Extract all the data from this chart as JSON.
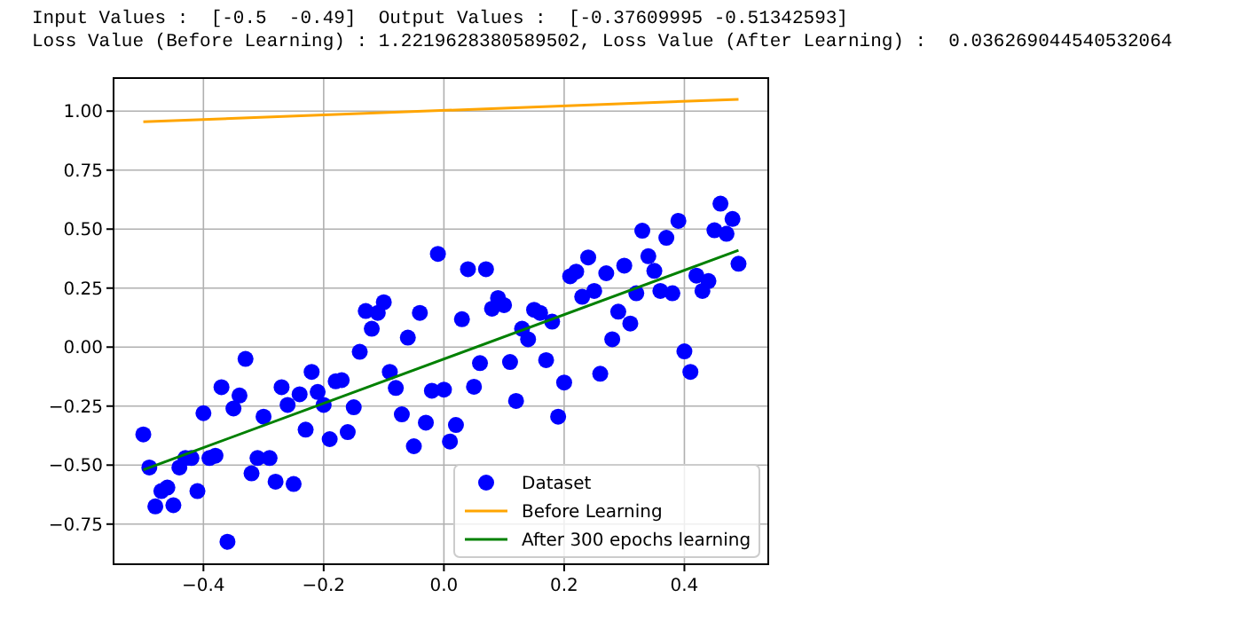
{
  "chart_data": {
    "type": "scatter",
    "title": "Input Values :  [-0.5  -0.49]  Output Values :  [-0.37609995 -0.51342593]",
    "subtitle": "Loss Value (Before Learning) : 1.2219628380589502, Loss Value (After Learning) :  0.036269044540532064",
    "xlim": [
      -0.5495,
      0.5395
    ],
    "ylim": [
      -0.92,
      1.14
    ],
    "xticks": [
      {
        "value": -0.4,
        "label": "−0.4"
      },
      {
        "value": -0.2,
        "label": "−0.2"
      },
      {
        "value": 0,
        "label": "0.0"
      },
      {
        "value": 0.2,
        "label": "0.2"
      },
      {
        "value": 0.4,
        "label": "0.4"
      }
    ],
    "yticks": [
      {
        "value": -0.75,
        "label": "−0.75"
      },
      {
        "value": -0.5,
        "label": "−0.50"
      },
      {
        "value": -0.25,
        "label": "−0.25"
      },
      {
        "value": 0,
        "label": "0.00"
      },
      {
        "value": 0.25,
        "label": "0.25"
      },
      {
        "value": 0.5,
        "label": "0.50"
      },
      {
        "value": 0.75,
        "label": "0.75"
      },
      {
        "value": 1,
        "label": "1.00"
      }
    ],
    "grid": true,
    "legend": "bottom right",
    "series": [
      {
        "name": "Dataset",
        "marker": "circle",
        "color": "#0000ff",
        "x": [
          -0.5,
          -0.49,
          -0.48,
          -0.47,
          -0.46,
          -0.45,
          -0.44,
          -0.43,
          -0.42,
          -0.41,
          -0.4,
          -0.39,
          -0.38,
          -0.37,
          -0.36,
          -0.35,
          -0.34,
          -0.33,
          -0.32,
          -0.31,
          -0.3,
          -0.29,
          -0.28,
          -0.27,
          -0.26,
          -0.25,
          -0.24,
          -0.23,
          -0.22,
          -0.21,
          -0.2,
          -0.19,
          -0.18,
          -0.17,
          -0.16,
          -0.15,
          -0.14,
          -0.13,
          -0.12,
          -0.11,
          -0.1,
          -0.09,
          -0.08,
          -0.07,
          -0.06,
          -0.05,
          -0.04,
          -0.03,
          -0.02,
          -0.01,
          0.0,
          0.01,
          0.02,
          0.03,
          0.04,
          0.05,
          0.06,
          0.07,
          0.08,
          0.09,
          0.1,
          0.11,
          0.12,
          0.13,
          0.14,
          0.15,
          0.16,
          0.17,
          0.18,
          0.19,
          0.2,
          0.21,
          0.22,
          0.23,
          0.24,
          0.25,
          0.26,
          0.27,
          0.28,
          0.29,
          0.3,
          0.31,
          0.32,
          0.33,
          0.34,
          0.35,
          0.36,
          0.37,
          0.38,
          0.39,
          0.4,
          0.41,
          0.42,
          0.43,
          0.44,
          0.45,
          0.46,
          0.47,
          0.48,
          0.49
        ],
        "values": [
          -0.37,
          -0.51,
          -0.675,
          -0.61,
          -0.595,
          -0.67,
          -0.51,
          -0.47,
          -0.47,
          -0.61,
          -0.28,
          -0.47,
          -0.46,
          -0.17,
          -0.825,
          -0.26,
          -0.205,
          -0.05,
          -0.535,
          -0.47,
          -0.295,
          -0.47,
          -0.57,
          -0.17,
          -0.245,
          -0.58,
          -0.2,
          -0.35,
          -0.105,
          -0.19,
          -0.245,
          -0.39,
          -0.145,
          -0.14,
          -0.36,
          -0.255,
          -0.02,
          0.153,
          0.078,
          0.145,
          0.19,
          -0.105,
          -0.173,
          -0.285,
          0.04,
          -0.42,
          0.145,
          -0.32,
          -0.185,
          0.395,
          -0.18,
          -0.4,
          -0.33,
          0.118,
          0.33,
          -0.168,
          -0.068,
          0.33,
          0.163,
          0.208,
          0.178,
          -0.063,
          -0.228,
          0.078,
          0.033,
          0.158,
          0.145,
          -0.055,
          0.108,
          -0.295,
          -0.15,
          0.3,
          0.32,
          0.213,
          0.38,
          0.238,
          -0.113,
          0.313,
          0.033,
          0.15,
          0.345,
          0.1,
          0.228,
          0.493,
          0.385,
          0.323,
          0.238,
          0.463,
          0.228,
          0.535,
          -0.018,
          -0.105,
          0.303,
          0.238,
          0.28,
          0.495,
          0.608,
          0.48,
          0.543,
          0.353
        ]
      },
      {
        "name": "Before Learning",
        "type": "line",
        "color": "#ffa500",
        "x": [
          -0.5,
          0.49
        ],
        "values": [
          0.955,
          1.05
        ]
      },
      {
        "name": "After 300 epochs learning",
        "type": "line",
        "color": "#008000",
        "x": [
          -0.5,
          0.49
        ],
        "values": [
          -0.52,
          0.41
        ]
      }
    ]
  }
}
